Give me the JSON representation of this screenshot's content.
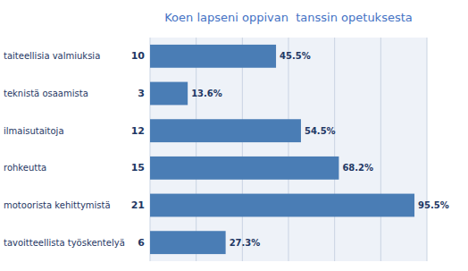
{
  "chart_data": {
    "type": "bar",
    "orientation": "horizontal",
    "title": "Koen lapseni oppivan  tanssin opetuksesta",
    "categories": [
      "taiteellisia valmiuksia",
      "teknistä osaamista",
      "ilmaisutaitoja",
      "rohkeutta",
      "motoorista kehittymistä",
      "tavoitteellista työskentelyä"
    ],
    "values": [
      45.5,
      13.6,
      54.5,
      68.2,
      95.5,
      27.3
    ],
    "value_labels": [
      "45.5%",
      "13.6%",
      "54.5%",
      "68.2%",
      "95.5%",
      "27.3%"
    ],
    "counts": [
      10,
      3,
      12,
      15,
      21,
      6
    ],
    "color": "#4a7db5",
    "xlim": [
      0,
      100
    ],
    "xticks": [
      0,
      16.666666666666668,
      33.333333333333336,
      50,
      66.66666666666667,
      83.33333333333334,
      100
    ],
    "grid": true,
    "tick_labels": false,
    "data_labels": true
  }
}
